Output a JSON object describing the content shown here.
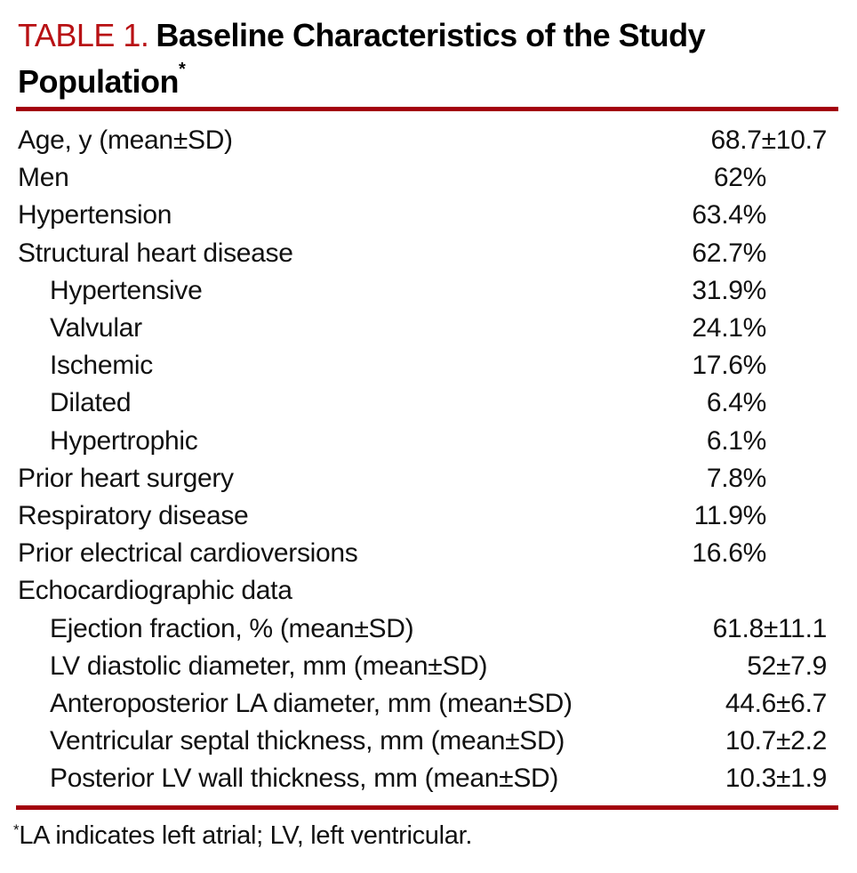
{
  "title": {
    "label": "TABLE 1.",
    "text": "Baseline Characteristics of the Study Population",
    "footnote_marker": "*"
  },
  "table": {
    "rows": [
      {
        "label": "Age, y (mean±SD)",
        "value": "68.7±10.7",
        "level": 0
      },
      {
        "label": "Men",
        "value": "62%",
        "level": 0
      },
      {
        "label": "Hypertension",
        "value": "63.4%",
        "level": 0
      },
      {
        "label": "Structural heart disease",
        "value": "62.7%",
        "level": 0
      },
      {
        "label": "Hypertensive",
        "value": "31.9%",
        "level": 1
      },
      {
        "label": "Valvular",
        "value": "24.1%",
        "level": 1
      },
      {
        "label": "Ischemic",
        "value": "17.6%",
        "level": 1
      },
      {
        "label": "Dilated",
        "value": "6.4%",
        "level": 1
      },
      {
        "label": "Hypertrophic",
        "value": "6.1%",
        "level": 1
      },
      {
        "label": "Prior heart surgery",
        "value": "7.8%",
        "level": 0
      },
      {
        "label": "Respiratory disease",
        "value": "11.9%",
        "level": 0
      },
      {
        "label": "Prior electrical cardioversions",
        "value": "16.6%",
        "level": 0
      },
      {
        "label": "Echocardiographic data",
        "value": "",
        "level": 0
      },
      {
        "label": "Ejection fraction, % (mean±SD)",
        "value": "61.8±11.1",
        "level": 1
      },
      {
        "label": "LV diastolic diameter, mm (mean±SD)",
        "value": "52±7.9",
        "level": 1
      },
      {
        "label": "Anteroposterior LA diameter, mm (mean±SD)",
        "value": "44.6±6.7",
        "level": 1
      },
      {
        "label": "Ventricular septal thickness, mm (mean±SD)",
        "value": "10.7±2.2",
        "level": 1
      },
      {
        "label": "Posterior LV wall thickness, mm (mean±SD)",
        "value": "10.3±1.9",
        "level": 1
      }
    ]
  },
  "footnote": {
    "marker": "*",
    "text": "LA indicates left atrial; LV, left ventricular."
  },
  "colors": {
    "title_red": "#B81114",
    "rule_red": "#A3000C"
  }
}
